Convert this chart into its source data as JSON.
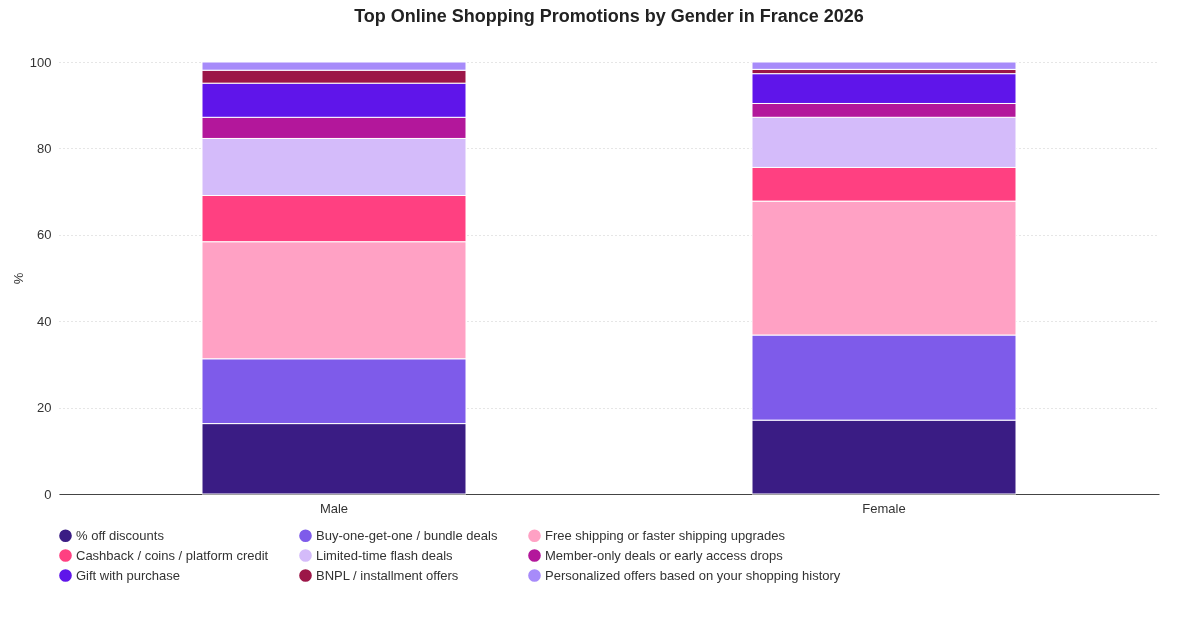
{
  "chart_data": {
    "type": "bar",
    "title": "Top Online Shopping Promotions by Gender in France 2026",
    "ylabel": "%",
    "categories": [
      "Male",
      "Female"
    ],
    "stacked": true,
    "ylim": [
      0,
      100
    ],
    "yticks": [
      0,
      20,
      40,
      60,
      80,
      100
    ],
    "grid": "y",
    "legend": "bottom",
    "series": [
      {
        "name": "% off discounts",
        "color": "#3a1c84",
        "values": [
          16.3,
          17.1
        ]
      },
      {
        "name": "Buy-one-get-one / bundle deals",
        "color": "#7e5bea",
        "values": [
          15.0,
          19.7
        ]
      },
      {
        "name": "Free shipping or faster shipping upgrades",
        "color": "#ffa1c4",
        "values": [
          27.1,
          31.0
        ]
      },
      {
        "name": "Cashback / coins / platform credit",
        "color": "#ff4081",
        "values": [
          10.7,
          7.8
        ]
      },
      {
        "name": "Limited-time flash deals",
        "color": "#d4bbfa",
        "values": [
          13.2,
          11.6
        ]
      },
      {
        "name": "Member-only deals or early access drops",
        "color": "#b3179b",
        "values": [
          4.9,
          3.2
        ]
      },
      {
        "name": "Gift with purchase",
        "color": "#5f15ea",
        "values": [
          7.9,
          6.9
        ]
      },
      {
        "name": "BNPL / installment offers",
        "color": "#9c1648",
        "values": [
          3.0,
          1.0
        ]
      },
      {
        "name": "Personalized offers based on your shopping history",
        "color": "#a78bfa",
        "values": [
          1.9,
          1.7
        ]
      }
    ]
  }
}
